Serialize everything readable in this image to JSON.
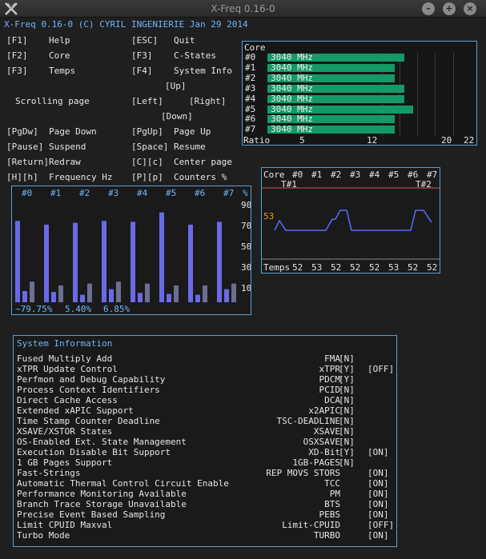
{
  "window": {
    "title": "X-Freq 0.16-0"
  },
  "header": {
    "text": "X-Freq 0.16-0 (C) CYRIL INGENIERIE Jan 29 2014"
  },
  "help": [
    [
      "[F1]",
      "Help",
      "[ESC]",
      "Quit"
    ],
    [
      "[F2]",
      "Core",
      "[F3]",
      "C-States"
    ],
    [
      "[F3]",
      "Temps",
      "[F4]",
      "System Info"
    ],
    [
      "",
      "",
      "[Up]",
      ""
    ],
    [
      "Scrolling page",
      "",
      "[Left]",
      "[Right]"
    ],
    [
      "",
      "",
      "[Down]",
      ""
    ],
    [
      "[PgDw]",
      "Page Down",
      "[PgUp]",
      "Page Up"
    ],
    [
      "[Pause]",
      "Suspend",
      "[Space]",
      "Resume"
    ],
    [
      "[Return]",
      "Redraw",
      "[C][c]",
      "Center page"
    ],
    [
      "[H][h]",
      "Frequency Hz",
      "[P][p]",
      "Counters %"
    ]
  ],
  "core": {
    "label": "Core",
    "cores": [
      {
        "id": "#0",
        "freq": "3040 MHz",
        "ratio": 16
      },
      {
        "id": "#1",
        "freq": "3040 MHz",
        "ratio": 15
      },
      {
        "id": "#2",
        "freq": "3040 MHz",
        "ratio": 15
      },
      {
        "id": "#3",
        "freq": "3040 MHz",
        "ratio": 16
      },
      {
        "id": "#4",
        "freq": "3040 MHz",
        "ratio": 16
      },
      {
        "id": "#5",
        "freq": "3040 MHz",
        "ratio": 17
      },
      {
        "id": "#6",
        "freq": "3040 MHz",
        "ratio": 15
      },
      {
        "id": "#7",
        "freq": "3040 MHz",
        "ratio": 15
      }
    ],
    "ratio_label": "Ratio",
    "ratio_ticks": [
      "5",
      "12",
      "20",
      "22"
    ],
    "bar_color": "#139a66"
  },
  "temps": {
    "header": [
      "Core",
      "#0",
      "#1",
      "#2",
      "#3",
      "#4",
      "#5",
      "#6",
      "#7"
    ],
    "t1": "T#1",
    "t2": "T#2",
    "current": "53",
    "footer_label": "Temps",
    "footer_values": [
      "52",
      "53",
      "52",
      "52",
      "52",
      "53",
      "52",
      "52"
    ],
    "line_color": "#5d6bff",
    "threshold_color": "#d9534f"
  },
  "usage": {
    "headers": [
      "#0",
      "#1",
      "#2",
      "#3",
      "#4",
      "#5",
      "#6",
      "#7",
      "%"
    ],
    "axis": [
      "90",
      "70",
      "50",
      "30",
      "10"
    ],
    "c0": [
      87,
      83,
      85,
      87,
      86,
      96,
      83,
      86
    ],
    "c1": [
      12,
      11,
      8,
      14,
      10,
      9,
      8,
      14
    ],
    "c2": [
      22,
      18,
      20,
      22,
      20,
      18,
      18,
      20
    ],
    "footer": [
      "~79.75%",
      "5.40%",
      "6.85%"
    ],
    "c0_color": "#6a6ae6",
    "c2_color": "#6e6e90"
  },
  "sysinfo": {
    "title": "System Information",
    "rows": [
      [
        "Fused Multiply Add",
        "FMA",
        "[N]",
        ""
      ],
      [
        "xTPR Update Control",
        "xTPR",
        "[Y]",
        "[OFF]"
      ],
      [
        "Perfmon and Debug Capability",
        "PDCM",
        "[Y]",
        ""
      ],
      [
        "Process Context Identifiers",
        "PCID",
        "[N]",
        ""
      ],
      [
        "Direct Cache Access",
        "DCA",
        "[N]",
        ""
      ],
      [
        "Extended xAPIC Support",
        "x2APIC",
        "[N]",
        ""
      ],
      [
        "Time Stamp Counter Deadline",
        "TSC-DEADLINE",
        "[N]",
        ""
      ],
      [
        "XSAVE/XSTOR States",
        "XSAVE",
        "[N]",
        ""
      ],
      [
        "OS-Enabled Ext. State Management",
        "OSXSAVE",
        "[N]",
        ""
      ],
      [
        "Execution Disable Bit Support",
        "XD-Bit",
        "[Y]",
        "[ON]"
      ],
      [
        "1 GB Pages Support",
        "1GB-PAGES",
        "[N]",
        ""
      ],
      [
        "Fast-Strings",
        "REP MOVS STORS",
        "",
        "[ON]"
      ],
      [
        "Automatic Thermal Control Circuit Enable",
        "TCC",
        "",
        "[ON]"
      ],
      [
        "Performance Monitoring Available",
        "PM",
        "",
        "[ON]"
      ],
      [
        "Branch Trace Storage Unavailable",
        "BTS",
        "",
        "[ON]"
      ],
      [
        "Precise Event Based Sampling",
        "PEBS",
        "",
        "[ON]"
      ],
      [
        "Limit CPUID Maxval",
        "Limit-CPUID",
        "",
        "[OFF]"
      ],
      [
        "Turbo Mode",
        "TURBO",
        "",
        "[ON]"
      ]
    ]
  }
}
